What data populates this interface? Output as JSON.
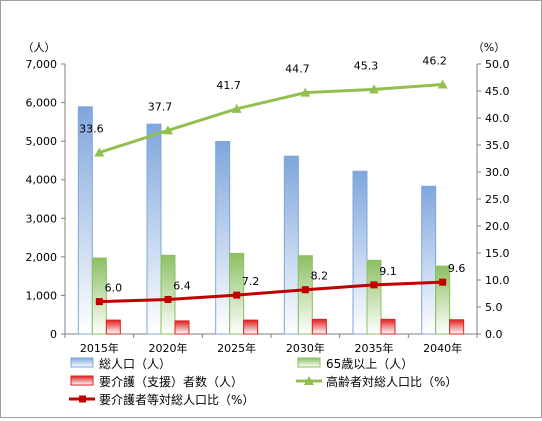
{
  "chart_data": {
    "type": "bar",
    "categories": [
      "2015年",
      "2020年",
      "2025年",
      "2030年",
      "2035年",
      "2040年"
    ],
    "y_left": {
      "unit_label": "（人）",
      "min": 0,
      "max": 7000,
      "step": 1000,
      "ticks": [
        "0",
        "1,000",
        "2,000",
        "3,000",
        "4,000",
        "5,000",
        "6,000",
        "7,000"
      ]
    },
    "y_right": {
      "unit_label": "（%）",
      "min": 0,
      "max": 50,
      "step": 5,
      "ticks": [
        "0.0",
        "5.0",
        "10.0",
        "15.0",
        "20.0",
        "25.0",
        "30.0",
        "35.0",
        "40.0",
        "45.0",
        "50.0"
      ]
    },
    "grid": false,
    "legend_position": "bottom",
    "series": [
      {
        "name": "総人口（人）",
        "kind": "bar",
        "axis": "left",
        "color": "#7fa6dc",
        "values": [
          5890,
          5440,
          4990,
          4610,
          4220,
          3830
        ]
      },
      {
        "name": "65歳以上（人）",
        "kind": "bar",
        "axis": "left",
        "color": "#8cc063",
        "values": [
          1970,
          2040,
          2090,
          2030,
          1910,
          1760
        ]
      },
      {
        "name": "要介護（支援）者数（人）",
        "kind": "bar",
        "axis": "left",
        "color": "#e02020",
        "values": [
          360,
          340,
          360,
          380,
          380,
          370
        ]
      },
      {
        "name": "高齢者対総人口比（%）",
        "kind": "line",
        "axis": "right",
        "color": "#92c050",
        "marker": "triangle",
        "values": [
          33.6,
          37.7,
          41.7,
          44.7,
          45.3,
          46.2
        ],
        "labels": [
          "33.6",
          "37.7",
          "41.7",
          "44.7",
          "45.3",
          "46.2"
        ]
      },
      {
        "name": "要介護者等対総人口比（%）",
        "kind": "line",
        "axis": "right",
        "color": "#c00000",
        "marker": "square",
        "values": [
          6.0,
          6.4,
          7.2,
          8.2,
          9.1,
          9.6
        ],
        "labels": [
          "6.0",
          "6.4",
          "7.2",
          "8.2",
          "9.1",
          "9.6"
        ]
      }
    ]
  }
}
